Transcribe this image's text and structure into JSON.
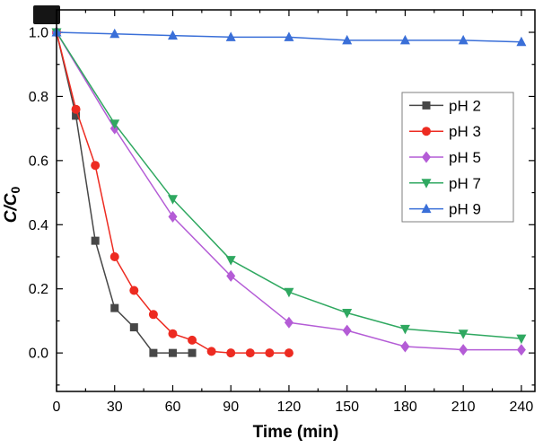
{
  "figure": {
    "corner_mark": true
  },
  "chart_data": {
    "type": "line",
    "title": "",
    "xlabel": "Time (min)",
    "ylabel": "C/C0",
    "ylabel_rich": {
      "base": "C/C",
      "sub": "0"
    },
    "xlim": [
      0,
      247
    ],
    "ylim": [
      -0.12,
      1.07
    ],
    "xticks": [
      0,
      30,
      60,
      90,
      120,
      150,
      180,
      210,
      240
    ],
    "yticks": [
      0.0,
      0.2,
      0.4,
      0.6,
      0.8,
      1.0
    ],
    "x_minor_ticks": [
      15,
      45,
      75,
      105,
      135,
      165,
      195,
      225
    ],
    "y_minor_ticks": [
      -0.1,
      0.1,
      0.3,
      0.5,
      0.7,
      0.9
    ],
    "grid": false,
    "legend_position": "middle-right",
    "frame": true,
    "colors": {
      "axis": "#000000",
      "legend_border": "#7f7f7f",
      "background": "#ffffff"
    },
    "series": [
      {
        "name": "pH 2",
        "color": "#474747",
        "marker": "square",
        "x": [
          0,
          10,
          20,
          30,
          40,
          50,
          60,
          70
        ],
        "y": [
          1.0,
          0.74,
          0.35,
          0.14,
          0.08,
          0.0,
          0.0,
          0.0
        ]
      },
      {
        "name": "pH 3",
        "color": "#ed2b21",
        "marker": "circle",
        "x": [
          0,
          10,
          20,
          30,
          40,
          50,
          60,
          70,
          80,
          90,
          100,
          110,
          120
        ],
        "y": [
          1.0,
          0.76,
          0.585,
          0.3,
          0.195,
          0.12,
          0.06,
          0.04,
          0.005,
          0.0,
          0.0,
          0.0,
          0.0
        ]
      },
      {
        "name": "pH 5",
        "color": "#b45cd6",
        "marker": "diamond",
        "x": [
          0,
          30,
          60,
          90,
          120,
          150,
          180,
          210,
          240
        ],
        "y": [
          1.0,
          0.7,
          0.425,
          0.24,
          0.095,
          0.07,
          0.02,
          0.01,
          0.01
        ]
      },
      {
        "name": "pH 7",
        "color": "#2fa860",
        "marker": "triangle-down",
        "x": [
          0,
          30,
          60,
          90,
          120,
          150,
          180,
          210,
          240
        ],
        "y": [
          1.0,
          0.715,
          0.48,
          0.29,
          0.19,
          0.125,
          0.075,
          0.06,
          0.045
        ]
      },
      {
        "name": "pH 9",
        "color": "#3a6fd8",
        "marker": "triangle-up",
        "x": [
          0,
          30,
          60,
          90,
          120,
          150,
          180,
          210,
          240
        ],
        "y": [
          1.0,
          0.995,
          0.99,
          0.985,
          0.985,
          0.975,
          0.975,
          0.975,
          0.97
        ]
      }
    ]
  }
}
